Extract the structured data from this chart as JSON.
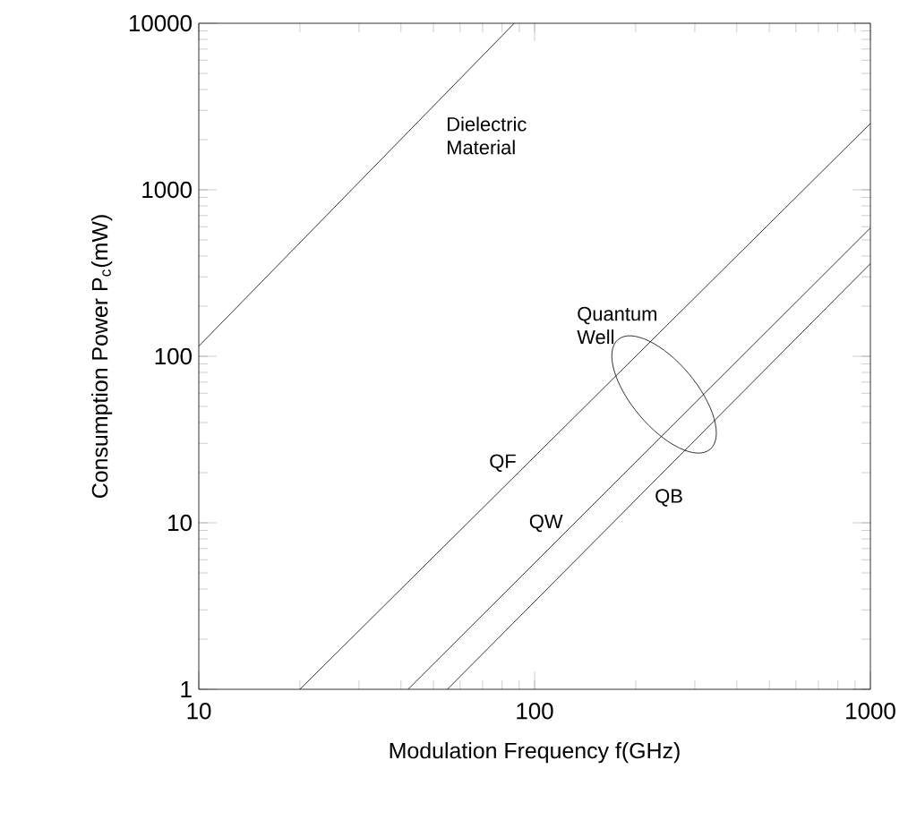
{
  "chart_data": {
    "type": "line",
    "xlabel": "Modulation Frequency     f(GHz)",
    "ylabel": "Consumption Power     P$_{c}$(mW)",
    "series": [
      {
        "name": "Dielectric Material",
        "color": "#000000",
        "x": [
          10,
          87
        ],
        "values": [
          115,
          10000
        ]
      },
      {
        "name": "QF",
        "color": "#000000",
        "x": [
          20,
          1000
        ],
        "values": [
          1,
          2500
        ]
      },
      {
        "name": "QW",
        "color": "#000000",
        "x": [
          42,
          1000
        ],
        "values": [
          1,
          590
        ]
      },
      {
        "name": "QB",
        "color": "#000000",
        "x": [
          55,
          1000
        ],
        "values": [
          1,
          360
        ]
      }
    ],
    "annotations": [
      "Quantum Well"
    ],
    "xlim": [
      10,
      1000
    ],
    "ylim": [
      1,
      10000
    ],
    "xticks": [
      10,
      100,
      1000
    ],
    "yticks": [
      1,
      10,
      100,
      1000,
      10000
    ],
    "log": "xy",
    "grid": false,
    "marker": "none",
    "line_style": "solid"
  }
}
